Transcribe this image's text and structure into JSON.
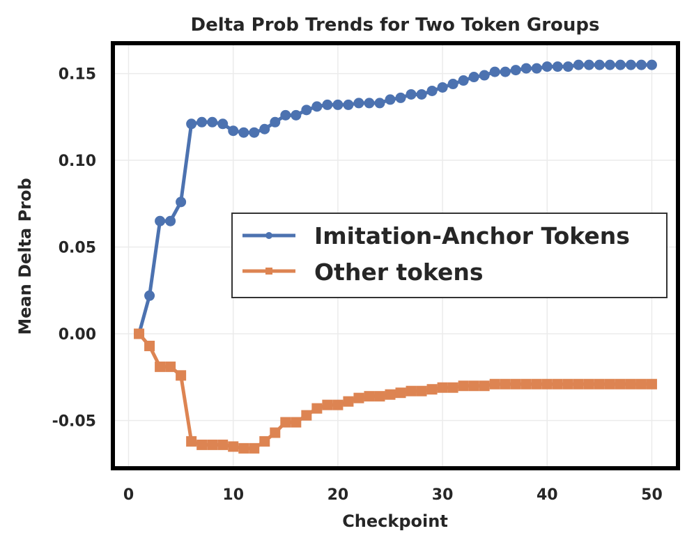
{
  "chart_data": {
    "type": "line",
    "title": "Delta Prob Trends for Two Token Groups",
    "xlabel": "Checkpoint",
    "ylabel": "Mean Delta Prob",
    "xlim": [
      -1.5,
      52.5
    ],
    "ylim": [
      -0.0775,
      0.1675
    ],
    "xticks": [
      0,
      10,
      20,
      30,
      40,
      50
    ],
    "xtick_labels": [
      "0",
      "10",
      "20",
      "30",
      "40",
      "50"
    ],
    "yticks": [
      -0.05,
      0.0,
      0.05,
      0.1,
      0.15
    ],
    "ytick_labels": [
      "-0.05",
      "0.00",
      "0.05",
      "0.10",
      "0.15"
    ],
    "grid": true,
    "legend_position": "center-right",
    "x": [
      1,
      2,
      3,
      4,
      5,
      6,
      7,
      8,
      9,
      10,
      11,
      12,
      13,
      14,
      15,
      16,
      17,
      18,
      19,
      20,
      21,
      22,
      23,
      24,
      25,
      26,
      27,
      28,
      29,
      30,
      31,
      32,
      33,
      34,
      35,
      36,
      37,
      38,
      39,
      40,
      41,
      42,
      43,
      44,
      45,
      46,
      47,
      48,
      49,
      50
    ],
    "series": [
      {
        "name": "Imitation-Anchor Tokens",
        "color": "#4c72b0",
        "marker": "circle",
        "values": [
          0.0,
          0.022,
          0.065,
          0.065,
          0.076,
          0.121,
          0.122,
          0.122,
          0.121,
          0.117,
          0.116,
          0.116,
          0.118,
          0.122,
          0.126,
          0.126,
          0.129,
          0.131,
          0.132,
          0.132,
          0.132,
          0.133,
          0.133,
          0.133,
          0.135,
          0.136,
          0.138,
          0.138,
          0.14,
          0.142,
          0.144,
          0.146,
          0.148,
          0.149,
          0.151,
          0.151,
          0.152,
          0.153,
          0.153,
          0.154,
          0.154,
          0.154,
          0.155,
          0.155,
          0.155,
          0.155,
          0.155,
          0.155,
          0.155,
          0.155
        ]
      },
      {
        "name": "Other tokens",
        "color": "#dd8452",
        "marker": "square",
        "values": [
          0.0,
          -0.007,
          -0.019,
          -0.019,
          -0.024,
          -0.062,
          -0.064,
          -0.064,
          -0.064,
          -0.065,
          -0.066,
          -0.066,
          -0.062,
          -0.057,
          -0.051,
          -0.051,
          -0.047,
          -0.043,
          -0.041,
          -0.041,
          -0.039,
          -0.037,
          -0.036,
          -0.036,
          -0.035,
          -0.034,
          -0.033,
          -0.033,
          -0.032,
          -0.031,
          -0.031,
          -0.03,
          -0.03,
          -0.03,
          -0.029,
          -0.029,
          -0.029,
          -0.029,
          -0.029,
          -0.029,
          -0.029,
          -0.029,
          -0.029,
          -0.029,
          -0.029,
          -0.029,
          -0.029,
          -0.029,
          -0.029,
          -0.029
        ]
      }
    ]
  }
}
